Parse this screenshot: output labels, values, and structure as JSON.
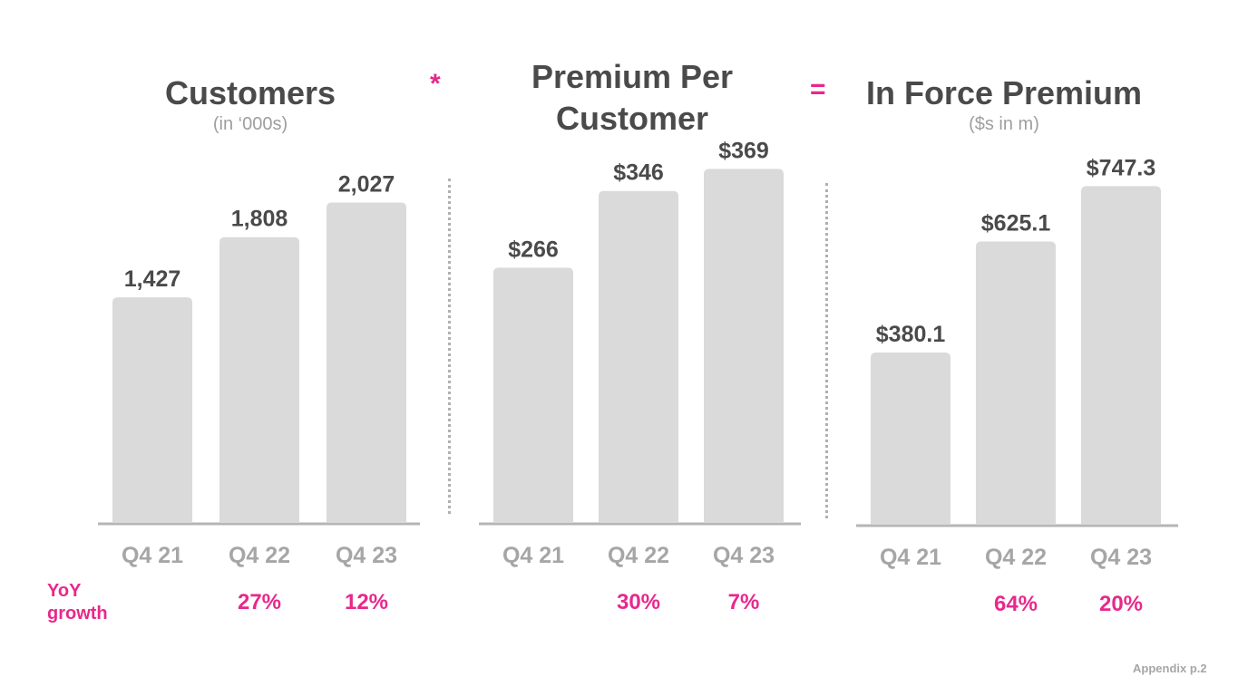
{
  "operators": {
    "multiply": "*",
    "equals": "="
  },
  "yoy_label_line1": "YoY",
  "yoy_label_line2": "growth",
  "footer": "Appendix p.2",
  "colors": {
    "bar": "#dadada",
    "axis": "#b5b5b5",
    "value": "#4a4a4a",
    "tick": "#a6a6a6",
    "accent": "#e8288c",
    "divider": "#b0b0b0"
  },
  "chart_data": [
    {
      "type": "bar",
      "title": "Customers",
      "subtitle": "(in ‘000s)",
      "categories": [
        "Q4 21",
        "Q4 22",
        "Q4 23"
      ],
      "values": [
        1427,
        1808,
        2027
      ],
      "value_labels": [
        "1,427",
        "1,808",
        "2,027"
      ],
      "yoy_growth": [
        "",
        "27%",
        "12%"
      ],
      "ylim": [
        0,
        2380
      ]
    },
    {
      "type": "bar",
      "title_lines": [
        "Premium Per",
        "Customer"
      ],
      "categories": [
        "Q4 21",
        "Q4 22",
        "Q4 23"
      ],
      "values": [
        266,
        346,
        369
      ],
      "value_labels": [
        "$266",
        "$346",
        "$369"
      ],
      "yoy_growth": [
        "",
        "30%",
        "7%"
      ],
      "ylim": [
        0,
        392
      ]
    },
    {
      "type": "bar",
      "title": "In Force Premium",
      "subtitle": "($s in m)",
      "categories": [
        "Q4 21",
        "Q4 22",
        "Q4 23"
      ],
      "values": [
        380.1,
        625.1,
        747.3
      ],
      "value_labels": [
        "$380.1",
        "$625.1",
        "$747.3"
      ],
      "yoy_growth": [
        "",
        "64%",
        "20%"
      ],
      "ylim": [
        0,
        830
      ]
    }
  ]
}
